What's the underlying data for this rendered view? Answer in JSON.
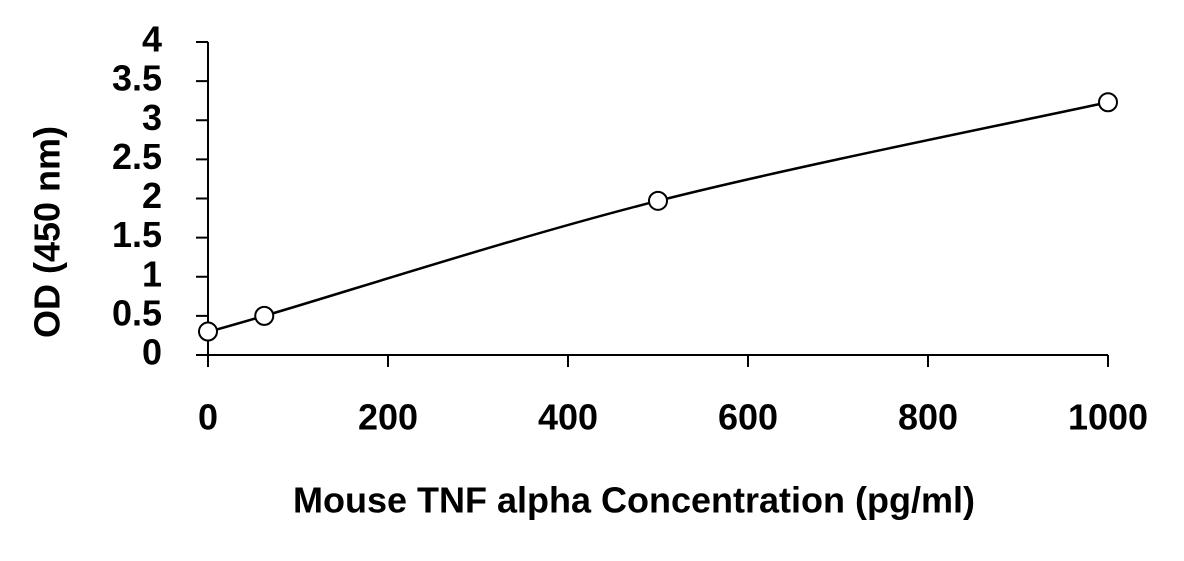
{
  "chart_data": {
    "type": "scatter",
    "x_label": "Mouse TNF alpha Concentration (pg/ml)",
    "y_label": "OD (450 nm)",
    "x": [
      0,
      62.5,
      500,
      1000
    ],
    "values": [
      0.3,
      0.5,
      1.97,
      3.23
    ],
    "color": "#000000",
    "fit_line": true,
    "xlim": [
      0,
      1000
    ],
    "xticks": [
      0,
      200,
      400,
      600,
      800,
      1000
    ],
    "ylim": [
      0,
      4
    ],
    "yticks": [
      0,
      0.5,
      1,
      1.5,
      2,
      2.5,
      3,
      3.5,
      4
    ]
  }
}
